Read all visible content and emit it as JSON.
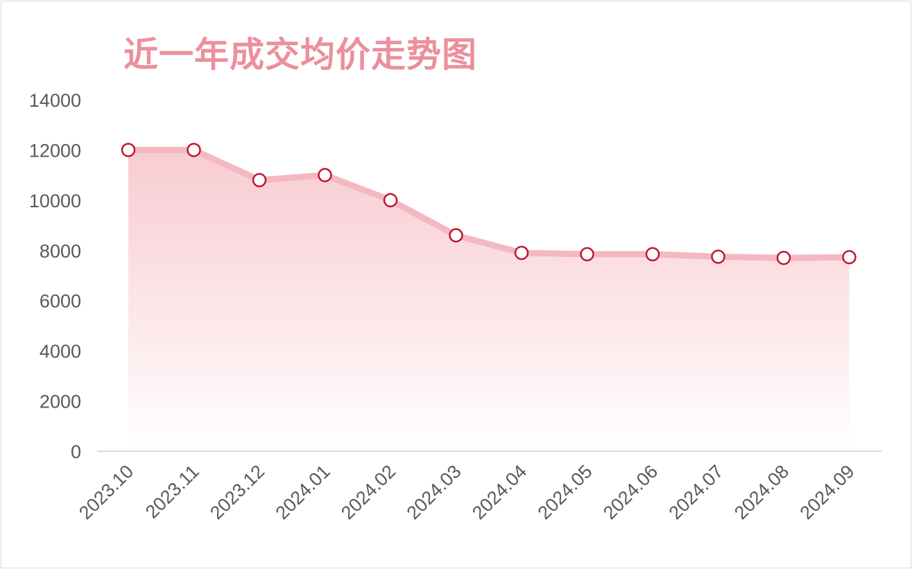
{
  "chart_data": {
    "type": "area",
    "title": "近一年成交均价走势图",
    "xlabel": "",
    "ylabel": "",
    "categories": [
      "2023.10",
      "2023.11",
      "2023.12",
      "2024.01",
      "2024.02",
      "2024.03",
      "2024.04",
      "2024.05",
      "2024.06",
      "2024.07",
      "2024.08",
      "2024.09"
    ],
    "series": [
      {
        "values": [
          12000,
          12000,
          10800,
          11000,
          10000,
          8600,
          7900,
          7850,
          7850,
          7750,
          7700,
          7730
        ]
      }
    ],
    "ylim": [
      0,
      14000
    ],
    "yticks": [
      "0",
      "2000",
      "4000",
      "6000",
      "8000",
      "10000",
      "12000",
      "14000"
    ],
    "grid": false,
    "legend": "none",
    "colors": {
      "title": "#ec8f9c",
      "line": "#f4b8c1",
      "area_top": "#f8c9d0",
      "area_bottom": "#ffffff",
      "marker_stroke": "#c0152f",
      "marker_fill": "#ffffff",
      "axis": "#d9d9d9",
      "tick_text": "#595959"
    }
  }
}
